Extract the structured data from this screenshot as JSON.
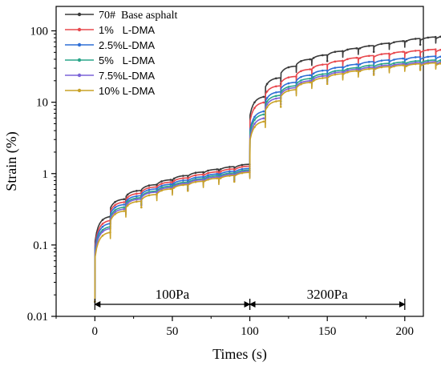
{
  "chart_data": {
    "type": "line",
    "xlabel": "Times (s)",
    "ylabel": "Strain (%)",
    "xlim": [
      -25,
      212
    ],
    "ylim": [
      0.01,
      220
    ],
    "yscale": "log",
    "xticks": [
      0,
      50,
      100,
      150,
      200
    ],
    "xtick_labels": [
      "0",
      "50",
      "100",
      "150",
      "200"
    ],
    "yticks": [
      0.01,
      0.1,
      1,
      10,
      100
    ],
    "ytick_labels": [
      "0.01",
      "0.1",
      "1",
      "10",
      "100"
    ],
    "legend_position": "top-left",
    "series": [
      {
        "name": "70#  Base asphalt",
        "color": "#3a3a3a",
        "marker": "square",
        "values": [
          0.25,
          0.44,
          0.58,
          0.7,
          0.82,
          0.94,
          1.05,
          1.15,
          1.25,
          1.35,
          12,
          22,
          32,
          40,
          46,
          52,
          57,
          62,
          67,
          72,
          78,
          82,
          86,
          89,
          91
        ]
      },
      {
        "name": "1%   L-DMA",
        "color": "#e8484d",
        "marker": "circle",
        "values": [
          0.22,
          0.4,
          0.53,
          0.65,
          0.76,
          0.87,
          0.97,
          1.06,
          1.16,
          1.27,
          10,
          17,
          23,
          29,
          34,
          38,
          42,
          45,
          48,
          51,
          53,
          55,
          56,
          57,
          58
        ]
      },
      {
        "name": "2.5%L-DMA",
        "color": "#2f6fd6",
        "marker": "triangle-up",
        "values": [
          0.2,
          0.37,
          0.49,
          0.61,
          0.71,
          0.81,
          0.9,
          0.99,
          1.08,
          1.18,
          7.5,
          14,
          19,
          24,
          28,
          31,
          34,
          37,
          39,
          41,
          43,
          44,
          45,
          46,
          47
        ]
      },
      {
        "name": "5%   L-DMA",
        "color": "#2aa68a",
        "marker": "triangle-down",
        "values": [
          0.18,
          0.34,
          0.46,
          0.57,
          0.67,
          0.76,
          0.85,
          0.94,
          1.02,
          1.12,
          6.8,
          12.5,
          17,
          21.5,
          25,
          28,
          30.5,
          33,
          35,
          36.5,
          38,
          39,
          40,
          40.5,
          41
        ]
      },
      {
        "name": "7.5%L-DMA",
        "color": "#7b63d8",
        "marker": "diamond",
        "values": [
          0.17,
          0.32,
          0.44,
          0.55,
          0.64,
          0.73,
          0.82,
          0.9,
          0.98,
          1.08,
          6.0,
          11.5,
          16,
          20,
          23.5,
          26.5,
          29,
          31,
          33,
          34.5,
          36,
          37,
          37.5,
          38,
          38.5
        ]
      },
      {
        "name": "10% L-DMA",
        "color": "#c9a227",
        "marker": "triangle-left",
        "values": [
          0.15,
          0.3,
          0.41,
          0.51,
          0.61,
          0.7,
          0.78,
          0.86,
          0.94,
          1.04,
          5.4,
          10.5,
          15,
          19,
          22,
          25,
          27.5,
          29.5,
          31.5,
          33,
          34.5,
          35.5,
          36,
          36.5,
          37
        ]
      }
    ],
    "annotations": [
      {
        "label": "100Pa",
        "x_start": 0,
        "x_end": 100
      },
      {
        "label": "3200Pa",
        "x_start": 100,
        "x_end": 200
      }
    ]
  }
}
